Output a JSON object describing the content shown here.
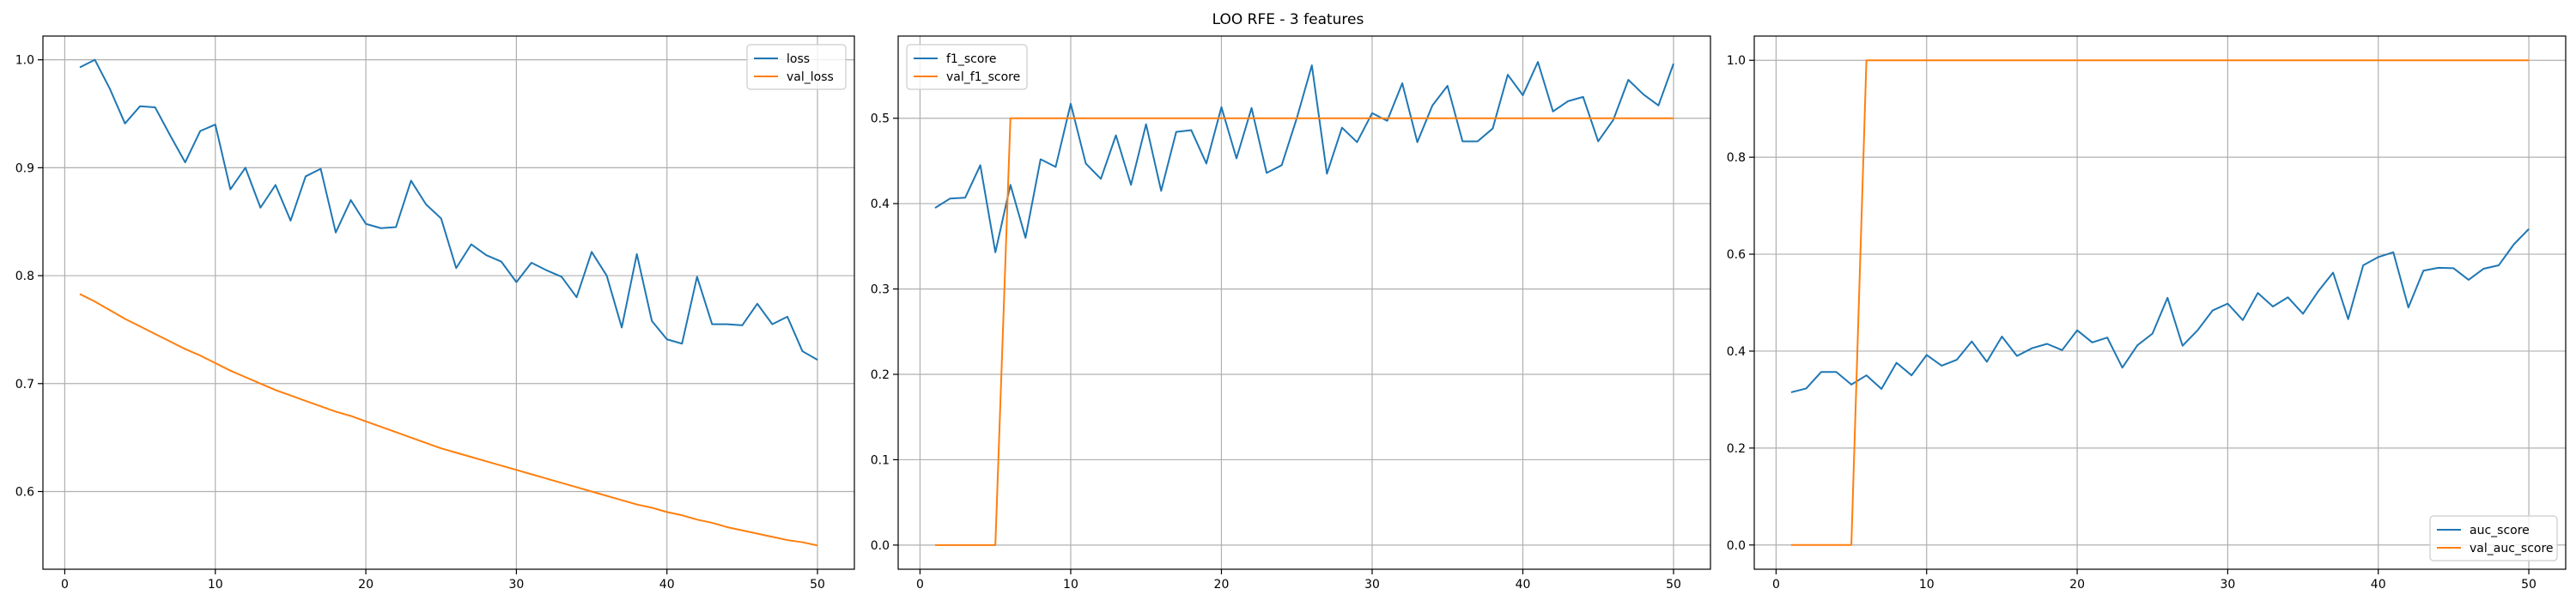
{
  "figure": {
    "title": "LOO RFE - 3 features",
    "series_colors": {
      "train": "#1f77b4",
      "val": "#ff7f0e"
    }
  },
  "chart_data": [
    {
      "type": "line",
      "title": "",
      "xlabel": "",
      "ylabel": "",
      "grid": true,
      "legend_placement": "top-right",
      "xlim": [
        -1.45,
        52.45
      ],
      "ylim": [
        0.528,
        1.022
      ],
      "xticks": [
        0,
        10,
        20,
        30,
        40,
        50
      ],
      "yticks": [
        0.6,
        0.7,
        0.8,
        0.9,
        1.0
      ],
      "ytick_labels": [
        "0.6",
        "0.7",
        "0.8",
        "0.9",
        "1.0"
      ],
      "x": [
        1,
        2,
        3,
        4,
        5,
        6,
        7,
        8,
        9,
        10,
        11,
        12,
        13,
        14,
        15,
        16,
        17,
        18,
        19,
        20,
        21,
        22,
        23,
        24,
        25,
        26,
        27,
        28,
        29,
        30,
        31,
        32,
        33,
        34,
        35,
        36,
        37,
        38,
        39,
        40,
        41,
        42,
        43,
        44,
        45,
        46,
        47,
        48,
        49,
        50
      ],
      "series": [
        {
          "name": "loss",
          "values": [
            0.993,
            1.0,
            0.973,
            0.941,
            0.957,
            0.956,
            0.93,
            0.905,
            0.934,
            0.94,
            0.88,
            0.9,
            0.863,
            0.884,
            0.851,
            0.892,
            0.899,
            0.84,
            0.87,
            0.848,
            0.844,
            0.845,
            0.888,
            0.866,
            0.853,
            0.807,
            0.829,
            0.819,
            0.813,
            0.794,
            0.812,
            0.805,
            0.799,
            0.78,
            0.822,
            0.8,
            0.752,
            0.82,
            0.758,
            0.741,
            0.737,
            0.799,
            0.755,
            0.755,
            0.754,
            0.774,
            0.755,
            0.762,
            0.73,
            0.722
          ]
        },
        {
          "name": "val_loss",
          "values": [
            0.783,
            0.776,
            0.768,
            0.76,
            0.753,
            0.746,
            0.739,
            0.732,
            0.726,
            0.719,
            0.712,
            0.706,
            0.7,
            0.694,
            0.689,
            0.684,
            0.679,
            0.674,
            0.67,
            0.665,
            0.66,
            0.655,
            0.65,
            0.645,
            0.64,
            0.636,
            0.632,
            0.628,
            0.624,
            0.62,
            0.616,
            0.612,
            0.608,
            0.604,
            0.6,
            0.596,
            0.592,
            0.588,
            0.585,
            0.581,
            0.578,
            0.574,
            0.571,
            0.567,
            0.564,
            0.561,
            0.558,
            0.555,
            0.553,
            0.55
          ]
        }
      ]
    },
    {
      "type": "line",
      "title": "",
      "xlabel": "",
      "ylabel": "",
      "grid": true,
      "legend_placement": "top-left",
      "xlim": [
        -1.45,
        52.45
      ],
      "ylim": [
        -0.0283,
        0.5963
      ],
      "xticks": [
        0,
        10,
        20,
        30,
        40,
        50
      ],
      "yticks": [
        0.0,
        0.1,
        0.2,
        0.3,
        0.4,
        0.5
      ],
      "ytick_labels": [
        "0.0",
        "0.1",
        "0.2",
        "0.3",
        "0.4",
        "0.5"
      ],
      "x": [
        1,
        2,
        3,
        4,
        5,
        6,
        7,
        8,
        9,
        10,
        11,
        12,
        13,
        14,
        15,
        16,
        17,
        18,
        19,
        20,
        21,
        22,
        23,
        24,
        25,
        26,
        27,
        28,
        29,
        30,
        31,
        32,
        33,
        34,
        35,
        36,
        37,
        38,
        39,
        40,
        41,
        42,
        43,
        44,
        45,
        46,
        47,
        48,
        49,
        50
      ],
      "series": [
        {
          "name": "f1_score",
          "values": [
            0.395,
            0.406,
            0.407,
            0.445,
            0.343,
            0.422,
            0.36,
            0.452,
            0.443,
            0.517,
            0.447,
            0.429,
            0.48,
            0.422,
            0.493,
            0.415,
            0.484,
            0.486,
            0.447,
            0.513,
            0.453,
            0.512,
            0.436,
            0.445,
            0.5,
            0.562,
            0.435,
            0.489,
            0.472,
            0.506,
            0.497,
            0.541,
            0.472,
            0.515,
            0.538,
            0.473,
            0.473,
            0.488,
            0.551,
            0.527,
            0.566,
            0.508,
            0.52,
            0.525,
            0.473,
            0.498,
            0.545,
            0.528,
            0.515,
            0.564
          ]
        },
        {
          "name": "val_f1_score",
          "values": [
            0,
            0,
            0,
            0,
            0,
            0.5,
            0.5,
            0.5,
            0.5,
            0.5,
            0.5,
            0.5,
            0.5,
            0.5,
            0.5,
            0.5,
            0.5,
            0.5,
            0.5,
            0.5,
            0.5,
            0.5,
            0.5,
            0.5,
            0.5,
            0.5,
            0.5,
            0.5,
            0.5,
            0.5,
            0.5,
            0.5,
            0.5,
            0.5,
            0.5,
            0.5,
            0.5,
            0.5,
            0.5,
            0.5,
            0.5,
            0.5,
            0.5,
            0.5,
            0.5,
            0.5,
            0.5,
            0.5,
            0.5,
            0.5
          ]
        }
      ]
    },
    {
      "type": "line",
      "title": "",
      "xlabel": "",
      "ylabel": "",
      "grid": true,
      "legend_placement": "bottom-right",
      "xlim": [
        -1.45,
        52.45
      ],
      "ylim": [
        -0.05,
        1.05
      ],
      "xticks": [
        0,
        10,
        20,
        30,
        40,
        50
      ],
      "yticks": [
        0.0,
        0.2,
        0.4,
        0.6,
        0.8,
        1.0
      ],
      "ytick_labels": [
        "0.0",
        "0.2",
        "0.4",
        "0.6",
        "0.8",
        "1.0"
      ],
      "x": [
        1,
        2,
        3,
        4,
        5,
        6,
        7,
        8,
        9,
        10,
        11,
        12,
        13,
        14,
        15,
        16,
        17,
        18,
        19,
        20,
        21,
        22,
        23,
        24,
        25,
        26,
        27,
        28,
        29,
        30,
        31,
        32,
        33,
        34,
        35,
        36,
        37,
        38,
        39,
        40,
        41,
        42,
        43,
        44,
        45,
        46,
        47,
        48,
        49,
        50
      ],
      "series": [
        {
          "name": "auc_score",
          "values": [
            0.315,
            0.323,
            0.357,
            0.357,
            0.331,
            0.35,
            0.322,
            0.376,
            0.35,
            0.392,
            0.37,
            0.382,
            0.42,
            0.378,
            0.43,
            0.39,
            0.406,
            0.415,
            0.402,
            0.443,
            0.418,
            0.428,
            0.366,
            0.412,
            0.436,
            0.51,
            0.411,
            0.443,
            0.484,
            0.498,
            0.464,
            0.52,
            0.492,
            0.511,
            0.477,
            0.523,
            0.562,
            0.466,
            0.577,
            0.594,
            0.604,
            0.49,
            0.566,
            0.572,
            0.571,
            0.547,
            0.57,
            0.577,
            0.62,
            0.652
          ]
        },
        {
          "name": "val_auc_score",
          "values": [
            0,
            0,
            0,
            0,
            0,
            1,
            1,
            1,
            1,
            1,
            1,
            1,
            1,
            1,
            1,
            1,
            1,
            1,
            1,
            1,
            1,
            1,
            1,
            1,
            1,
            1,
            1,
            1,
            1,
            1,
            1,
            1,
            1,
            1,
            1,
            1,
            1,
            1,
            1,
            1,
            1,
            1,
            1,
            1,
            1,
            1,
            1,
            1,
            1,
            1
          ]
        }
      ]
    }
  ]
}
